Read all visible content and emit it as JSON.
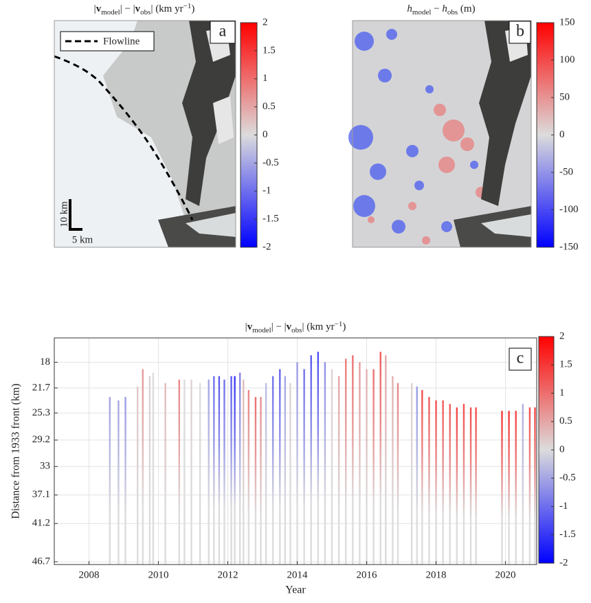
{
  "maps": [
    {
      "title": [
        "|",
        "v",
        "model",
        "| − |",
        "v",
        "obs",
        "| (km yr",
        "−1",
        ")"
      ],
      "letter": "a",
      "legend": "Flowline",
      "scale_labels": [
        "10 km",
        "5 km"
      ],
      "clim": [
        -2,
        2
      ],
      "cticks": [
        -2,
        -1.5,
        -1,
        -0.5,
        0,
        0.5,
        1,
        1.5,
        2
      ]
    },
    {
      "title": [
        "h",
        "model",
        " − ",
        "h",
        "obs",
        " (m)"
      ],
      "letter": "b",
      "clim": [
        -150,
        150
      ],
      "cticks": [
        -150,
        -100,
        -50,
        0,
        50,
        100,
        150
      ]
    }
  ],
  "chart_data": {
    "type": "heatmap",
    "title": [
      "|",
      "v",
      "model",
      "| − |",
      "v",
      "obs",
      "| (km yr",
      "−1",
      ")"
    ],
    "letter": "c",
    "xlabel": "Year",
    "ylabel": "Distance from 1933 front (km)",
    "xlim": [
      2007,
      2020.9
    ],
    "xticks": [
      2008,
      2010,
      2012,
      2014,
      2016,
      2018,
      2020
    ],
    "ylim": [
      14.5,
      47.1
    ],
    "y_reversed": true,
    "yticks": [
      18,
      21.7,
      25.3,
      29.2,
      33,
      37.1,
      41.2,
      46.7
    ],
    "grid": true,
    "colormap": [
      "#0000ff",
      "#dcdcdc",
      "#ff0000"
    ],
    "clim": [
      -2,
      2
    ],
    "cticks": [
      -2,
      -1.5,
      -1,
      -0.5,
      0,
      0.5,
      1,
      1.5,
      2
    ],
    "columns": {
      "x": [
        2008.6,
        2008.85,
        2009.05,
        2009.4,
        2009.55,
        2009.75,
        2009.85,
        2010.2,
        2010.6,
        2010.75,
        2010.95,
        2011.2,
        2011.45,
        2011.6,
        2011.75,
        2011.9,
        2012.1,
        2012.2,
        2012.35,
        2012.45,
        2012.6,
        2012.8,
        2012.95,
        2013.1,
        2013.3,
        2013.5,
        2013.65,
        2013.8,
        2014.0,
        2014.2,
        2014.4,
        2014.6,
        2014.8,
        2015.0,
        2015.2,
        2015.4,
        2015.6,
        2015.8,
        2016.0,
        2016.2,
        2016.4,
        2016.55,
        2016.75,
        2016.9,
        2017.3,
        2017.45,
        2017.6,
        2017.8,
        2018.0,
        2018.2,
        2018.4,
        2018.6,
        2018.8,
        2019.0,
        2019.15,
        2019.9,
        2020.1,
        2020.3,
        2020.5,
        2020.7,
        2020.85
      ],
      "top": [
        23,
        23.5,
        23,
        21.5,
        19,
        20,
        19.5,
        21,
        20.5,
        20.5,
        20.5,
        21,
        20.5,
        20,
        20,
        20.5,
        20,
        20,
        19.5,
        20.5,
        22,
        23,
        23,
        21,
        20,
        19,
        20,
        21,
        18,
        19,
        17,
        16.5,
        18,
        19,
        20,
        17.5,
        17,
        18,
        19,
        19,
        16.5,
        17,
        20,
        21,
        21,
        21.5,
        22,
        23,
        23.5,
        23.5,
        24,
        24.5,
        24,
        24.5,
        24.5,
        25,
        25,
        25,
        24,
        24.5,
        24.5
      ],
      "values": [
        -0.5,
        -0.5,
        -0.6,
        0.2,
        0.6,
        0.1,
        0,
        0.3,
        0.8,
        0,
        0.1,
        0,
        -0.5,
        -1,
        -1.2,
        -1,
        -1.2,
        -1.5,
        -0.8,
        0.3,
        0.8,
        1,
        0.7,
        -0.3,
        -1,
        -1.1,
        -0.5,
        0.1,
        -0.6,
        -1,
        -1.2,
        -1.3,
        -0.7,
        0.1,
        0.5,
        0.9,
        1,
        0.6,
        0.4,
        1,
        1.2,
        0.5,
        0.4,
        0.8,
        0.1,
        -0.6,
        1.3,
        1.2,
        1.3,
        1.2,
        1.2,
        1.4,
        1.3,
        1.3,
        1.3,
        1.5,
        1.5,
        1.4,
        -0.4,
        1.3,
        1.4
      ]
    }
  }
}
